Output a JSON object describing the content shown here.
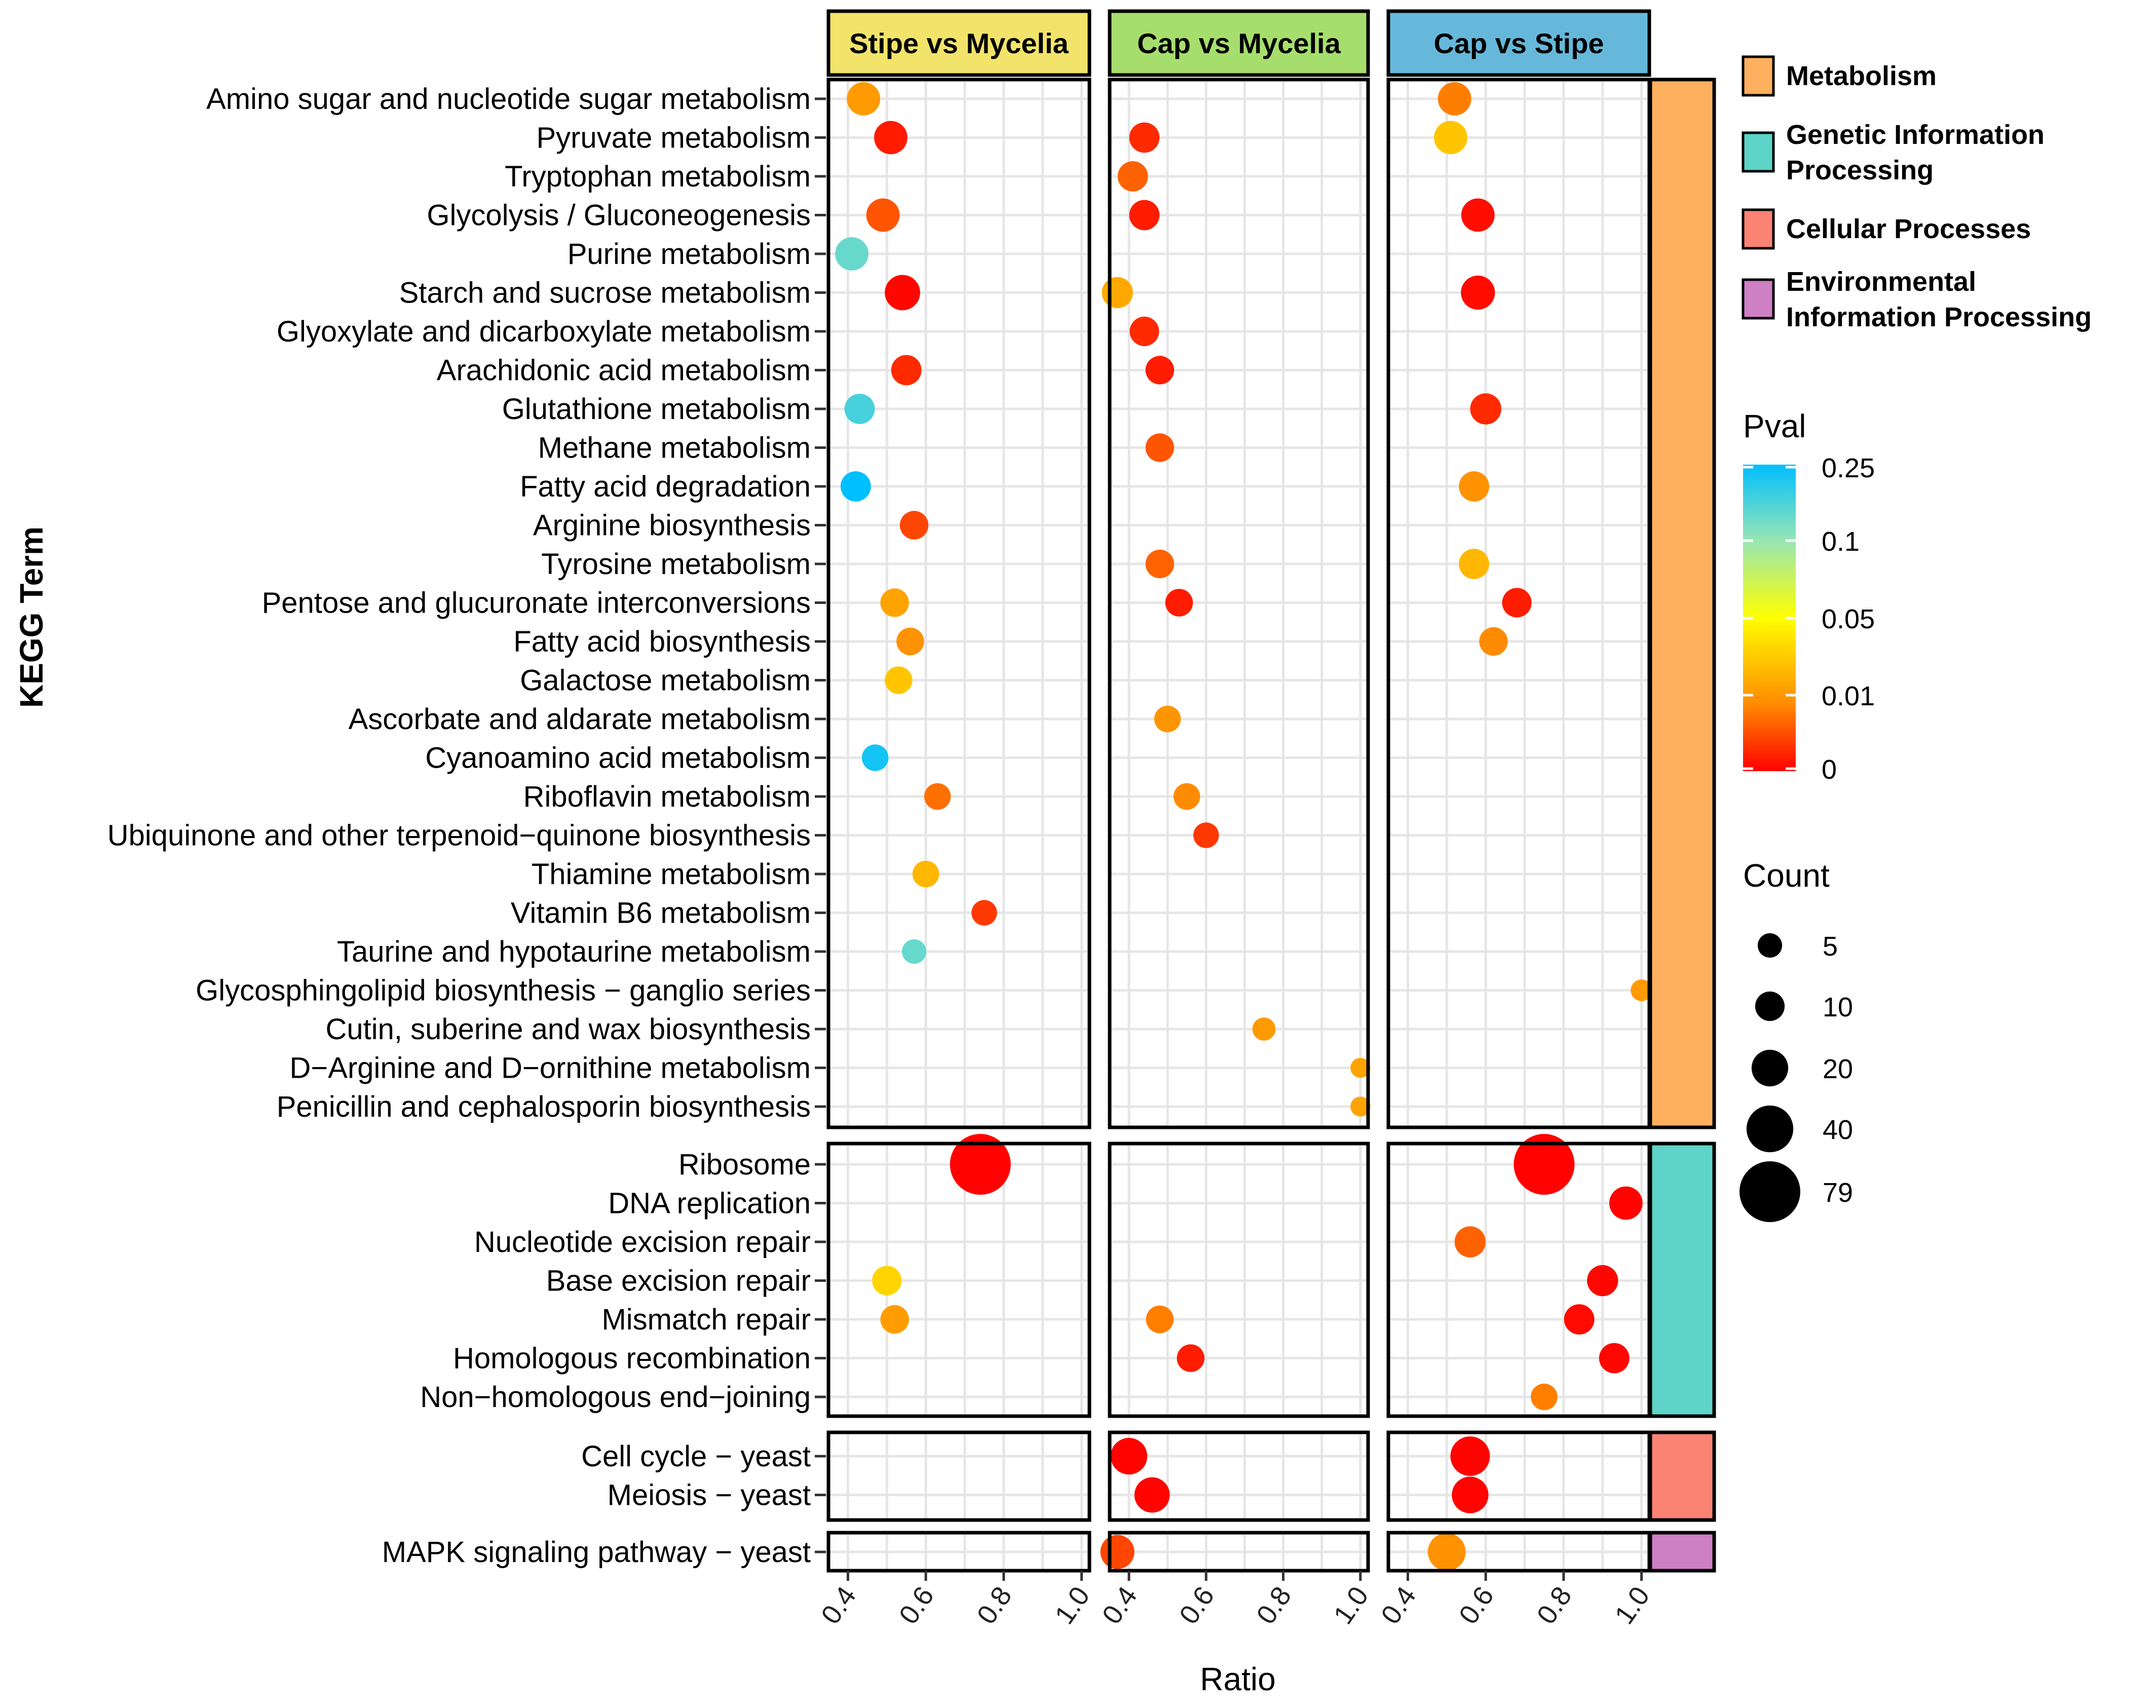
{
  "chart_data": {
    "type": "scatter",
    "subtype": "faceted bubble chart (KEGG enrichment)",
    "xlabel": "Ratio",
    "ylabel": "KEGG Term",
    "xlim": [
      0.35,
      1.02
    ],
    "x_ticks": [
      "0.4",
      "0.6",
      "0.8",
      "1.0"
    ],
    "x_tick_values": [
      0.4,
      0.6,
      0.8,
      1.0
    ],
    "comparisons": [
      {
        "label": "Stipe vs Mycelia",
        "color": "#F2E36A"
      },
      {
        "label": "Cap vs Mycelia",
        "color": "#A6DE6E"
      },
      {
        "label": "Cap vs Stipe",
        "color": "#66B8DA"
      }
    ],
    "categories": [
      {
        "label": "Metabolism",
        "color": "#FDB05E",
        "terms": [
          "Amino sugar and nucleotide sugar metabolism",
          "Pyruvate metabolism",
          "Tryptophan metabolism",
          "Glycolysis / Gluconeogenesis",
          "Purine metabolism",
          "Starch and sucrose metabolism",
          "Glyoxylate and dicarboxylate metabolism",
          "Arachidonic acid metabolism",
          "Glutathione metabolism",
          "Methane metabolism",
          "Fatty acid degradation",
          "Arginine biosynthesis",
          "Tyrosine metabolism",
          "Pentose and glucuronate interconversions",
          "Fatty acid biosynthesis",
          "Galactose metabolism",
          "Ascorbate and aldarate metabolism",
          "Cyanoamino acid metabolism",
          "Riboflavin metabolism",
          "Ubiquinone and other terpenoid−quinone biosynthesis",
          "Thiamine metabolism",
          "Vitamin B6 metabolism",
          "Taurine and hypotaurine metabolism",
          "Glycosphingolipid biosynthesis − ganglio series",
          "Cutin, suberine and wax biosynthesis",
          "D−Arginine and D−ornithine metabolism",
          "Penicillin and cephalosporin biosynthesis"
        ]
      },
      {
        "label": "Genetic Information Processing",
        "color": "#5ED4C8",
        "terms": [
          "Ribosome",
          "DNA replication",
          "Nucleotide excision repair",
          "Base excision repair",
          "Mismatch repair",
          "Homologous recombination",
          "Non−homologous end−joining"
        ]
      },
      {
        "label": "Cellular Processes",
        "color": "#FB8373",
        "terms": [
          "Cell cycle − yeast",
          "Meiosis − yeast"
        ]
      },
      {
        "label": "Environmental Information Processing",
        "color": "#CF7FC4",
        "terms": [
          "MAPK signaling pathway − yeast"
        ]
      }
    ],
    "series": [
      {
        "name": "Stipe vs Mycelia",
        "points": [
          {
            "term": "Amino sugar and nucleotide sugar metabolism",
            "x": 0.44,
            "pval": 0.015,
            "count": 15
          },
          {
            "term": "Pyruvate metabolism",
            "x": 0.51,
            "pval": 0.002,
            "count": 15
          },
          {
            "term": "Tryptophan metabolism",
            "x": null
          },
          {
            "term": "Glycolysis / Gluconeogenesis",
            "x": 0.49,
            "pval": 0.006,
            "count": 15
          },
          {
            "term": "Purine metabolism",
            "x": 0.41,
            "pval": 0.15,
            "count": 15
          },
          {
            "term": "Starch and sucrose metabolism",
            "x": 0.54,
            "pval": 0.0005,
            "count": 18
          },
          {
            "term": "Glyoxylate and dicarboxylate metabolism",
            "x": null
          },
          {
            "term": "Arachidonic acid metabolism",
            "x": 0.55,
            "pval": 0.003,
            "count": 11
          },
          {
            "term": "Glutathione metabolism",
            "x": 0.43,
            "pval": 0.18,
            "count": 11
          },
          {
            "term": "Methane metabolism",
            "x": null
          },
          {
            "term": "Fatty acid degradation",
            "x": 0.42,
            "pval": 0.25,
            "count": 11
          },
          {
            "term": "Arginine biosynthesis",
            "x": 0.57,
            "pval": 0.005,
            "count": 9
          },
          {
            "term": "Tyrosine metabolism",
            "x": null
          },
          {
            "term": "Pentose and glucuronate interconversions",
            "x": 0.52,
            "pval": 0.018,
            "count": 9
          },
          {
            "term": "Fatty acid biosynthesis",
            "x": 0.56,
            "pval": 0.012,
            "count": 8
          },
          {
            "term": "Galactose metabolism",
            "x": 0.53,
            "pval": 0.03,
            "count": 8
          },
          {
            "term": "Ascorbate and aldarate metabolism",
            "x": null
          },
          {
            "term": "Cyanoamino acid metabolism",
            "x": 0.47,
            "pval": 0.23,
            "count": 7
          },
          {
            "term": "Riboflavin metabolism",
            "x": 0.63,
            "pval": 0.008,
            "count": 7
          },
          {
            "term": "Ubiquinone and other terpenoid−quinone biosynthesis",
            "x": null
          },
          {
            "term": "Thiamine metabolism",
            "x": 0.6,
            "pval": 0.025,
            "count": 7
          },
          {
            "term": "Vitamin B6 metabolism",
            "x": 0.75,
            "pval": 0.004,
            "count": 6
          },
          {
            "term": "Taurine and hypotaurine metabolism",
            "x": 0.57,
            "pval": 0.15,
            "count": 5
          },
          {
            "term": "Glycosphingolipid biosynthesis − ganglio series",
            "x": null
          },
          {
            "term": "Cutin, suberine and wax biosynthesis",
            "x": null
          },
          {
            "term": "D−Arginine and D−ornithine metabolism",
            "x": null
          },
          {
            "term": "Penicillin and cephalosporin biosynthesis",
            "x": null
          },
          {
            "term": "Ribosome",
            "x": 0.74,
            "pval": 0.0001,
            "count": 79
          },
          {
            "term": "DNA replication",
            "x": null
          },
          {
            "term": "Nucleotide excision repair",
            "x": null
          },
          {
            "term": "Base excision repair",
            "x": 0.5,
            "pval": 0.035,
            "count": 10
          },
          {
            "term": "Mismatch repair",
            "x": 0.52,
            "pval": 0.016,
            "count": 9
          },
          {
            "term": "Homologous recombination",
            "x": null
          },
          {
            "term": "Non−homologous end−joining",
            "x": null
          },
          {
            "term": "Cell cycle − yeast",
            "x": null
          },
          {
            "term": "Meiosis − yeast",
            "x": null
          },
          {
            "term": "MAPK signaling pathway − yeast",
            "x": null
          }
        ]
      },
      {
        "name": "Cap vs Mycelia",
        "points": [
          {
            "term": "Amino sugar and nucleotide sugar metabolism",
            "x": null
          },
          {
            "term": "Pyruvate metabolism",
            "x": 0.44,
            "pval": 0.003,
            "count": 11
          },
          {
            "term": "Tryptophan metabolism",
            "x": 0.41,
            "pval": 0.007,
            "count": 11
          },
          {
            "term": "Glycolysis / Gluconeogenesis",
            "x": 0.44,
            "pval": 0.002,
            "count": 11
          },
          {
            "term": "Purine metabolism",
            "x": null
          },
          {
            "term": "Starch and sucrose metabolism",
            "x": 0.37,
            "pval": 0.02,
            "count": 12
          },
          {
            "term": "Glyoxylate and dicarboxylate metabolism",
            "x": 0.44,
            "pval": 0.003,
            "count": 10
          },
          {
            "term": "Arachidonic acid metabolism",
            "x": 0.48,
            "pval": 0.002,
            "count": 9
          },
          {
            "term": "Glutathione metabolism",
            "x": null
          },
          {
            "term": "Methane metabolism",
            "x": 0.48,
            "pval": 0.006,
            "count": 9
          },
          {
            "term": "Fatty acid degradation",
            "x": null
          },
          {
            "term": "Arginine biosynthesis",
            "x": null
          },
          {
            "term": "Tyrosine metabolism",
            "x": 0.48,
            "pval": 0.007,
            "count": 9
          },
          {
            "term": "Pentose and glucuronate interconversions",
            "x": 0.53,
            "pval": 0.002,
            "count": 8
          },
          {
            "term": "Fatty acid biosynthesis",
            "x": null
          },
          {
            "term": "Galactose metabolism",
            "x": null
          },
          {
            "term": "Ascorbate and aldarate metabolism",
            "x": 0.5,
            "pval": 0.013,
            "count": 7
          },
          {
            "term": "Cyanoamino acid metabolism",
            "x": null
          },
          {
            "term": "Riboflavin metabolism",
            "x": 0.55,
            "pval": 0.01,
            "count": 7
          },
          {
            "term": "Ubiquinone and other terpenoid−quinone biosynthesis",
            "x": 0.6,
            "pval": 0.004,
            "count": 6
          },
          {
            "term": "Thiamine metabolism",
            "x": null
          },
          {
            "term": "Vitamin B6 metabolism",
            "x": null
          },
          {
            "term": "Taurine and hypotaurine metabolism",
            "x": null
          },
          {
            "term": "Glycosphingolipid biosynthesis − ganglio series",
            "x": null
          },
          {
            "term": "Cutin, suberine and wax biosynthesis",
            "x": 0.75,
            "pval": 0.015,
            "count": 4
          },
          {
            "term": "D−Arginine and D−ornithine metabolism",
            "x": 1.0,
            "pval": 0.018,
            "count": 2
          },
          {
            "term": "Penicillin and cephalosporin biosynthesis",
            "x": 1.0,
            "pval": 0.018,
            "count": 2
          },
          {
            "term": "Ribosome",
            "x": null
          },
          {
            "term": "DNA replication",
            "x": null
          },
          {
            "term": "Nucleotide excision repair",
            "x": null
          },
          {
            "term": "Base excision repair",
            "x": null
          },
          {
            "term": "Mismatch repair",
            "x": 0.48,
            "pval": 0.009,
            "count": 8
          },
          {
            "term": "Homologous recombination",
            "x": 0.56,
            "pval": 0.002,
            "count": 8
          },
          {
            "term": "Non−homologous end−joining",
            "x": null
          },
          {
            "term": "Cell cycle − yeast",
            "x": 0.4,
            "pval": 0.0002,
            "count": 20
          },
          {
            "term": "Meiosis − yeast",
            "x": 0.46,
            "pval": 0.0003,
            "count": 18
          },
          {
            "term": "MAPK signaling pathway − yeast",
            "x": 0.37,
            "pval": 0.005,
            "count": 16
          }
        ]
      },
      {
        "name": "Cap vs Stipe",
        "points": [
          {
            "term": "Amino sugar and nucleotide sugar metabolism",
            "x": 0.52,
            "pval": 0.009,
            "count": 15
          },
          {
            "term": "Pyruvate metabolism",
            "x": 0.51,
            "pval": 0.03,
            "count": 15
          },
          {
            "term": "Tryptophan metabolism",
            "x": null
          },
          {
            "term": "Glycolysis / Gluconeogenesis",
            "x": 0.58,
            "pval": 0.001,
            "count": 15
          },
          {
            "term": "Purine metabolism",
            "x": null
          },
          {
            "term": "Starch and sucrose metabolism",
            "x": 0.58,
            "pval": 0.0008,
            "count": 16
          },
          {
            "term": "Glyoxylate and dicarboxylate metabolism",
            "x": null
          },
          {
            "term": "Arachidonic acid metabolism",
            "x": null
          },
          {
            "term": "Glutathione metabolism",
            "x": 0.6,
            "pval": 0.003,
            "count": 12
          },
          {
            "term": "Methane metabolism",
            "x": null
          },
          {
            "term": "Fatty acid degradation",
            "x": 0.57,
            "pval": 0.012,
            "count": 11
          },
          {
            "term": "Arginine biosynthesis",
            "x": null
          },
          {
            "term": "Tyrosine metabolism",
            "x": 0.57,
            "pval": 0.025,
            "count": 11
          },
          {
            "term": "Pentose and glucuronate interconversions",
            "x": 0.68,
            "pval": 0.002,
            "count": 10
          },
          {
            "term": "Fatty acid biosynthesis",
            "x": 0.62,
            "pval": 0.01,
            "count": 9
          },
          {
            "term": "Galactose metabolism",
            "x": null
          },
          {
            "term": "Ascorbate and aldarate metabolism",
            "x": null
          },
          {
            "term": "Cyanoamino acid metabolism",
            "x": null
          },
          {
            "term": "Riboflavin metabolism",
            "x": null
          },
          {
            "term": "Ubiquinone and other terpenoid−quinone biosynthesis",
            "x": null
          },
          {
            "term": "Thiamine metabolism",
            "x": null
          },
          {
            "term": "Vitamin B6 metabolism",
            "x": null
          },
          {
            "term": "Taurine and hypotaurine metabolism",
            "x": null
          },
          {
            "term": "Glycosphingolipid biosynthesis − ganglio series",
            "x": 1.0,
            "pval": 0.015,
            "count": 3
          },
          {
            "term": "Cutin, suberine and wax biosynthesis",
            "x": null
          },
          {
            "term": "D−Arginine and D−ornithine metabolism",
            "x": null
          },
          {
            "term": "Penicillin and cephalosporin biosynthesis",
            "x": null
          },
          {
            "term": "Ribosome",
            "x": 0.75,
            "pval": 0.0001,
            "count": 79
          },
          {
            "term": "DNA replication",
            "x": 0.96,
            "pval": 0.0002,
            "count": 15
          },
          {
            "term": "Nucleotide excision repair",
            "x": 0.56,
            "pval": 0.007,
            "count": 12
          },
          {
            "term": "Base excision repair",
            "x": 0.9,
            "pval": 0.0005,
            "count": 12
          },
          {
            "term": "Mismatch repair",
            "x": 0.84,
            "pval": 0.0007,
            "count": 11
          },
          {
            "term": "Homologous recombination",
            "x": 0.93,
            "pval": 0.0004,
            "count": 11
          },
          {
            "term": "Non−homologous end−joining",
            "x": 0.75,
            "pval": 0.009,
            "count": 7
          },
          {
            "term": "Cell cycle − yeast",
            "x": 0.56,
            "pval": 0.0002,
            "count": 25
          },
          {
            "term": "Meiosis − yeast",
            "x": 0.56,
            "pval": 0.0003,
            "count": 20
          },
          {
            "term": "MAPK signaling pathway − yeast",
            "x": 0.5,
            "pval": 0.012,
            "count": 22
          }
        ]
      }
    ],
    "legend_pval": {
      "title": "Pval",
      "tick_labels": [
        "0.25",
        "0.1",
        "0.05",
        "0.01",
        "0"
      ],
      "tick_values": [
        0.25,
        0.1,
        0.05,
        0.01,
        0
      ],
      "gradient": [
        "#FF0000",
        "#FF8C00",
        "#FFFF00",
        "#99E6B3",
        "#00BFFF"
      ]
    },
    "legend_count": {
      "title": "Count",
      "values": [
        5,
        10,
        20,
        40,
        79
      ],
      "labels": [
        "5",
        "10",
        "20",
        "40",
        "79"
      ]
    }
  }
}
